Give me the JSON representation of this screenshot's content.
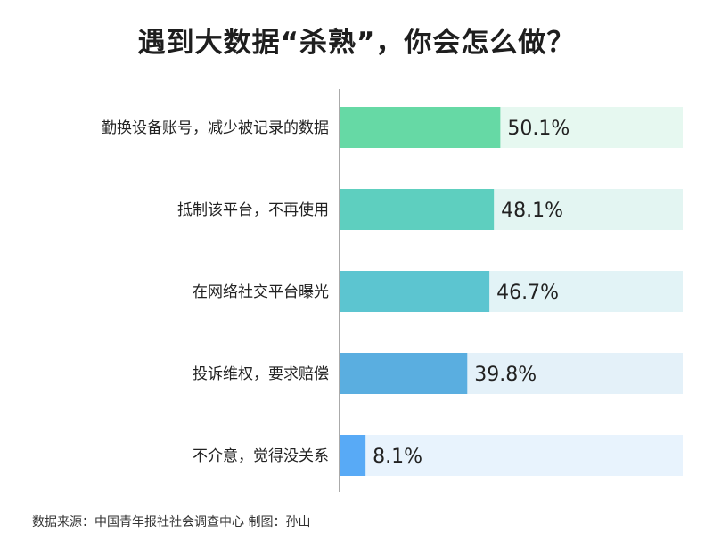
{
  "chart_data": {
    "type": "bar",
    "orientation": "horizontal",
    "title": "遇到大数据“杀熟”，你会怎么做？",
    "categories": [
      "勤换设备账号，减少被记录的数据",
      "抵制该平台，不再使用",
      "在网络社交平台曝光",
      "投诉维权，要求赔偿",
      "不介意，觉得没关系"
    ],
    "values": [
      50.1,
      48.1,
      46.7,
      39.8,
      8.1
    ],
    "value_labels": [
      "50.1%",
      "48.1%",
      "46.7%",
      "39.8%",
      "8.1%"
    ],
    "xlim": [
      0,
      100
    ],
    "unit": "%",
    "bar_colors": [
      "#66d9a5",
      "#5ecfbf",
      "#5cc5d0",
      "#5aaee0",
      "#58aaf6"
    ],
    "track_colors": [
      "#e6f8f0",
      "#e3f5f2",
      "#e2f3f6",
      "#e4f1f9",
      "#e8f3fd"
    ],
    "axis_color": "#aaaaaa",
    "label_color": "#222222"
  },
  "footer": {
    "source": "数据来源：中国青年报社社会调查中心 制图：孙山"
  }
}
